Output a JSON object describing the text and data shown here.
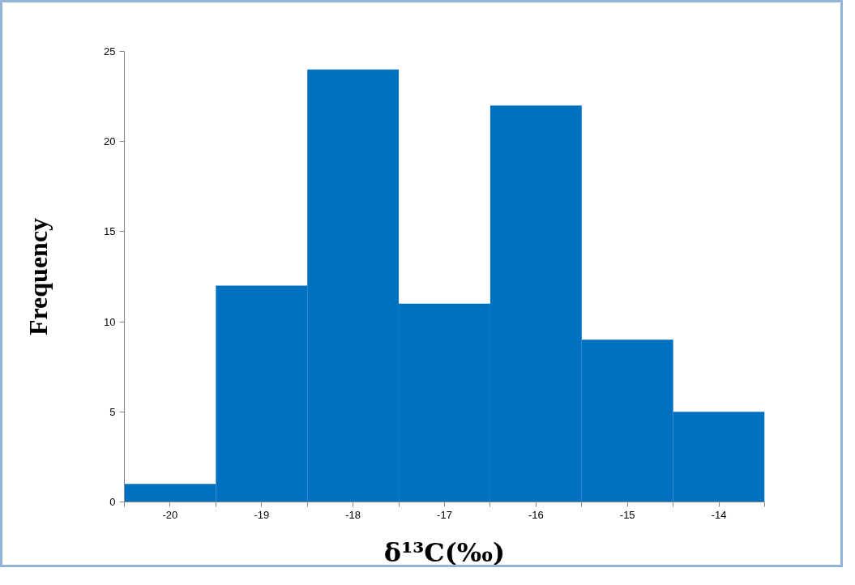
{
  "chart_data": {
    "type": "histogram",
    "xlabel": "δ¹³C(‰)",
    "ylabel": "Frequency",
    "bins": [
      -20.5,
      -19.5,
      -18.5,
      -17.5,
      -16.5,
      -15.5,
      -14.5,
      -13.5
    ],
    "values": [
      1,
      12,
      24,
      11,
      22,
      9,
      5
    ],
    "color": "#0070c0",
    "xlim": [
      -20.5,
      -13.5
    ],
    "xticks": [
      {
        "value": -20.5,
        "label": null
      },
      -20,
      {
        "value": -19.5,
        "label": null
      },
      -19,
      {
        "value": -18.5,
        "label": null
      },
      -18,
      {
        "value": -17.5,
        "label": null
      },
      -17,
      {
        "value": -16.5,
        "label": null
      },
      -16,
      {
        "value": -15.5,
        "label": null
      },
      -15,
      {
        "value": -14.5,
        "label": null
      },
      -14,
      {
        "value": -13.5,
        "label": null
      }
    ],
    "ylim": [
      0,
      25
    ],
    "yticks": [
      0,
      5,
      10,
      15,
      20,
      25
    ],
    "grid": false
  }
}
